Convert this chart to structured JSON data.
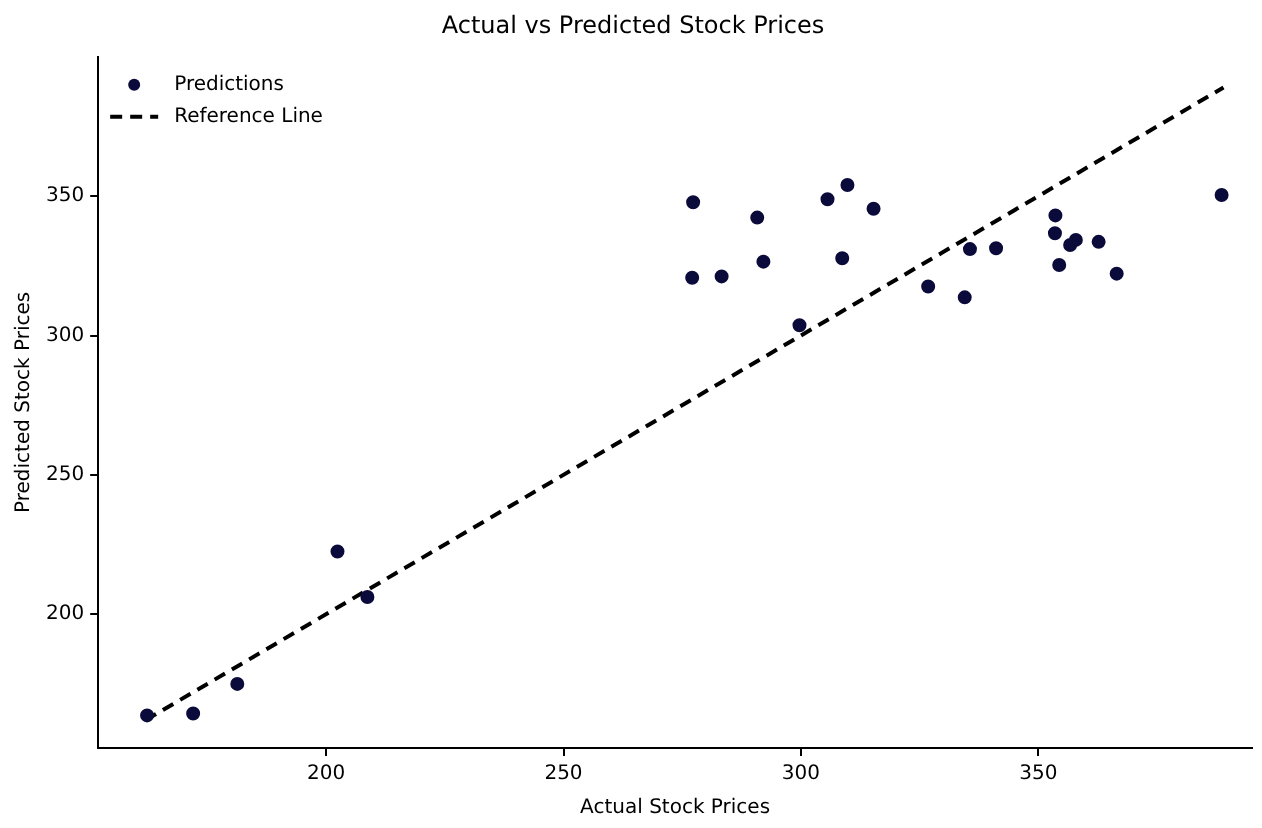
{
  "chart_data": {
    "type": "scatter",
    "title": "Actual vs Predicted Stock Prices",
    "xlabel": "Actual Stock Prices",
    "ylabel": "Predicted Stock Prices",
    "xlim": [
      152,
      395
    ],
    "ylim": [
      152,
      400
    ],
    "xticks": [
      200,
      250,
      300,
      350
    ],
    "yticks": [
      200,
      250,
      300,
      350
    ],
    "grid": false,
    "legend": "top left",
    "series": [
      {
        "name": "Predictions",
        "type": "scatter",
        "marker": "circle",
        "color": "#0b0b3b",
        "x": [
          162.3,
          172.0,
          181.3,
          202.4,
          208.7,
          277.3,
          277.1,
          283.3,
          290.8,
          292.1,
          299.7,
          305.6,
          309.8,
          308.7,
          315.3,
          326.8,
          334.5,
          335.6,
          341.1,
          353.6,
          353.5,
          354.4,
          356.7,
          357.9,
          362.7,
          366.5,
          388.6
        ],
        "values": [
          163.7,
          164.4,
          175.0,
          222.5,
          206.2,
          347.8,
          320.7,
          321.2,
          342.3,
          326.5,
          303.7,
          348.9,
          354.0,
          327.7,
          345.5,
          317.6,
          313.7,
          331.0,
          331.3,
          343.1,
          336.7,
          325.3,
          332.5,
          334.3,
          333.6,
          322.2,
          350.4
        ]
      },
      {
        "name": "Reference Line",
        "type": "line",
        "line_style": "dashed",
        "marker": "none",
        "color": "#000000",
        "x": [
          162,
          389
        ],
        "values": [
          162,
          389
        ]
      }
    ]
  }
}
